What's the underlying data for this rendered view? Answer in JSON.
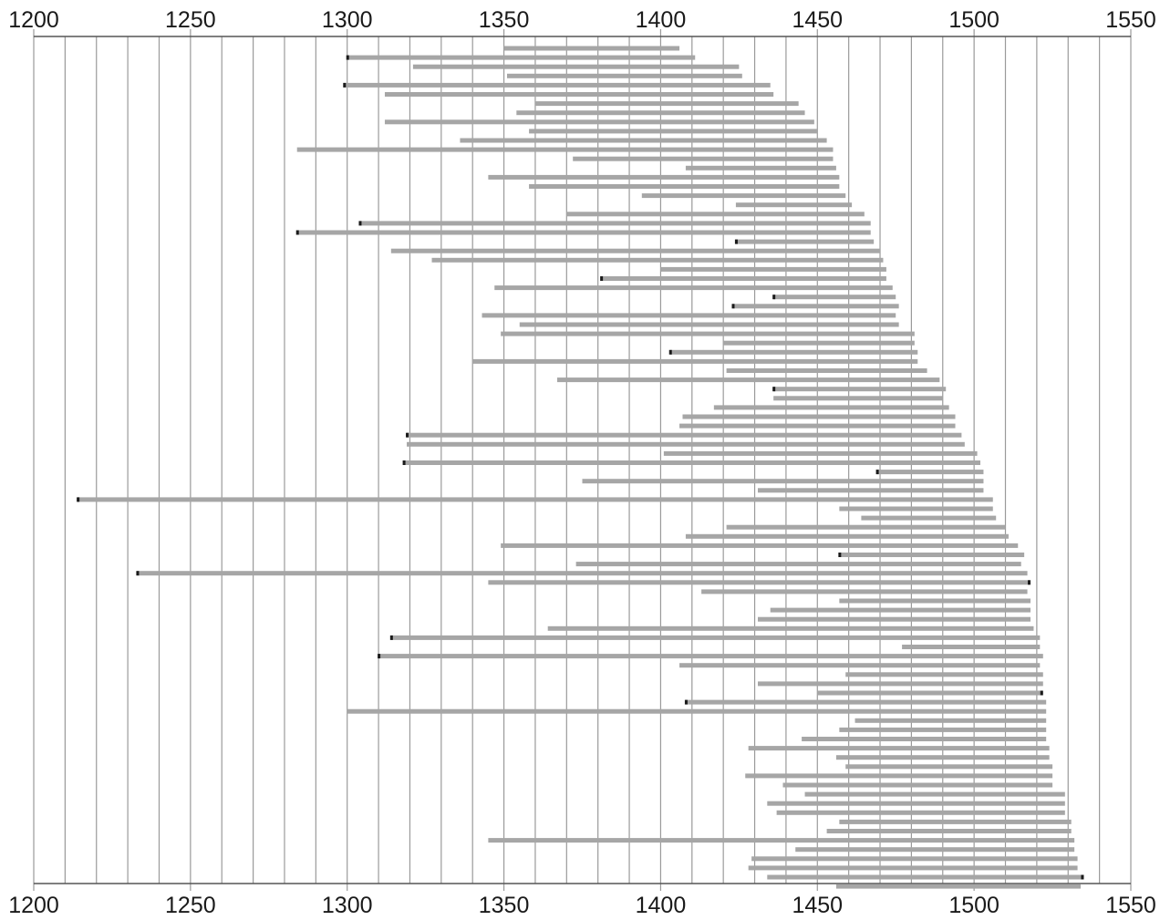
{
  "chart_data": {
    "type": "bar",
    "orientation": "horizontal",
    "title": "",
    "xlabel": "",
    "ylabel": "",
    "xlim": [
      1200,
      1550
    ],
    "x_ticks": [
      "1200",
      "1250",
      "1300",
      "1350",
      "1400",
      "1450",
      "1500",
      "1550"
    ],
    "grid_step": 10,
    "grid": true,
    "colors": {
      "bar": "#a6a6a6",
      "marker": "#1a1a1a",
      "grid": "#9a9a9a",
      "axis": "#555555"
    },
    "bars": [
      {
        "start": 1350,
        "end": 1406
      },
      {
        "start": 1300,
        "end": 1411,
        "marker": true
      },
      {
        "start": 1321,
        "end": 1425
      },
      {
        "start": 1351,
        "end": 1426
      },
      {
        "start": 1299,
        "end": 1435,
        "marker": true
      },
      {
        "start": 1312,
        "end": 1436
      },
      {
        "start": 1360,
        "end": 1444
      },
      {
        "start": 1354,
        "end": 1446
      },
      {
        "start": 1312,
        "end": 1449
      },
      {
        "start": 1358,
        "end": 1450
      },
      {
        "start": 1336,
        "end": 1453
      },
      {
        "start": 1284,
        "end": 1455
      },
      {
        "start": 1372,
        "end": 1455
      },
      {
        "start": 1408,
        "end": 1456
      },
      {
        "start": 1345,
        "end": 1457
      },
      {
        "start": 1358,
        "end": 1457
      },
      {
        "start": 1394,
        "end": 1459
      },
      {
        "start": 1424,
        "end": 1461
      },
      {
        "start": 1370,
        "end": 1465
      },
      {
        "start": 1304,
        "end": 1467,
        "marker": true
      },
      {
        "start": 1284,
        "end": 1467,
        "marker": true
      },
      {
        "start": 1424,
        "end": 1468,
        "marker": true
      },
      {
        "start": 1314,
        "end": 1470
      },
      {
        "start": 1327,
        "end": 1471
      },
      {
        "start": 1400,
        "end": 1472
      },
      {
        "start": 1381,
        "end": 1472,
        "marker": true
      },
      {
        "start": 1347,
        "end": 1474
      },
      {
        "start": 1436,
        "end": 1475,
        "marker": true
      },
      {
        "start": 1423,
        "end": 1476,
        "marker": true
      },
      {
        "start": 1343,
        "end": 1475
      },
      {
        "start": 1355,
        "end": 1476
      },
      {
        "start": 1349,
        "end": 1481
      },
      {
        "start": 1420,
        "end": 1481
      },
      {
        "start": 1403,
        "end": 1482,
        "marker": true
      },
      {
        "start": 1340,
        "end": 1482
      },
      {
        "start": 1421,
        "end": 1485
      },
      {
        "start": 1367,
        "end": 1489
      },
      {
        "start": 1436,
        "end": 1491,
        "marker": true
      },
      {
        "start": 1436,
        "end": 1490
      },
      {
        "start": 1417,
        "end": 1492
      },
      {
        "start": 1407,
        "end": 1494
      },
      {
        "start": 1406,
        "end": 1494
      },
      {
        "start": 1319,
        "end": 1496,
        "marker": true
      },
      {
        "start": 1319,
        "end": 1497
      },
      {
        "start": 1401,
        "end": 1501
      },
      {
        "start": 1318,
        "end": 1502,
        "marker": true
      },
      {
        "start": 1469,
        "end": 1503,
        "marker": true
      },
      {
        "start": 1375,
        "end": 1503
      },
      {
        "start": 1431,
        "end": 1503
      },
      {
        "start": 1214,
        "end": 1506,
        "marker": true
      },
      {
        "start": 1457,
        "end": 1506
      },
      {
        "start": 1464,
        "end": 1507
      },
      {
        "start": 1421,
        "end": 1510
      },
      {
        "start": 1408,
        "end": 1511
      },
      {
        "start": 1349,
        "end": 1514
      },
      {
        "start": 1457,
        "end": 1516,
        "marker": true
      },
      {
        "start": 1373,
        "end": 1515
      },
      {
        "start": 1233,
        "end": 1517,
        "marker": true
      },
      {
        "start": 1345,
        "end": 1518,
        "marker": true
      },
      {
        "start": 1413,
        "end": 1517
      },
      {
        "start": 1457,
        "end": 1518
      },
      {
        "start": 1435,
        "end": 1518
      },
      {
        "start": 1431,
        "end": 1518
      },
      {
        "start": 1364,
        "end": 1519
      },
      {
        "start": 1314,
        "end": 1521,
        "marker": true
      },
      {
        "start": 1477,
        "end": 1521
      },
      {
        "start": 1310,
        "end": 1522,
        "marker": true
      },
      {
        "start": 1406,
        "end": 1521
      },
      {
        "start": 1459,
        "end": 1522
      },
      {
        "start": 1431,
        "end": 1522
      },
      {
        "start": 1450,
        "end": 1522,
        "marker": true
      },
      {
        "start": 1408,
        "end": 1523,
        "marker": true
      },
      {
        "start": 1300,
        "end": 1523
      },
      {
        "start": 1462,
        "end": 1523
      },
      {
        "start": 1457,
        "end": 1523
      },
      {
        "start": 1445,
        "end": 1523
      },
      {
        "start": 1428,
        "end": 1524
      },
      {
        "start": 1456,
        "end": 1524
      },
      {
        "start": 1459,
        "end": 1525
      },
      {
        "start": 1427,
        "end": 1525
      },
      {
        "start": 1439,
        "end": 1525
      },
      {
        "start": 1446,
        "end": 1529
      },
      {
        "start": 1434,
        "end": 1529
      },
      {
        "start": 1437,
        "end": 1529
      },
      {
        "start": 1457,
        "end": 1531
      },
      {
        "start": 1453,
        "end": 1531
      },
      {
        "start": 1345,
        "end": 1532
      },
      {
        "start": 1443,
        "end": 1532
      },
      {
        "start": 1429,
        "end": 1533
      },
      {
        "start": 1428,
        "end": 1533
      },
      {
        "start": 1434,
        "end": 1535,
        "marker": true
      },
      {
        "start": 1456,
        "end": 1534
      }
    ]
  }
}
